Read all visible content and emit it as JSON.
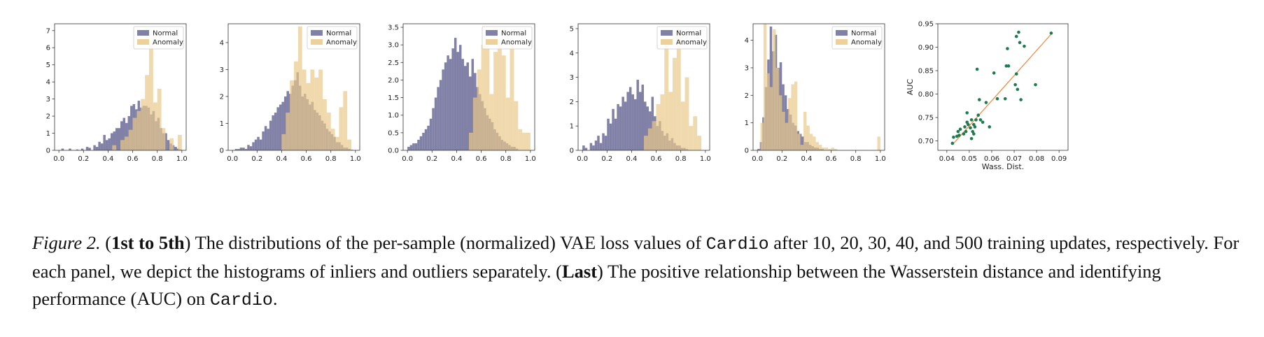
{
  "legend": {
    "normal": "Normal",
    "anomaly": "Anomaly"
  },
  "colors": {
    "normal": "#6b6b98",
    "anomaly": "#e9c98a",
    "overlap": "#a8906e",
    "scatter": "#1e7a4f",
    "fit": "#f08a44"
  },
  "chart_data": [
    {
      "type": "histogram",
      "panel": 1,
      "xlim": [
        0,
        1
      ],
      "ylim": [
        0,
        7.4
      ],
      "x_ticks": [
        "0.0",
        "0.2",
        "0.4",
        "0.6",
        "0.8",
        "1.0"
      ],
      "y_ticks": [
        "0",
        "1",
        "2",
        "3",
        "4",
        "5",
        "6",
        "7"
      ],
      "legend_loc": "upper-right",
      "series": [
        {
          "name": "Normal",
          "bins": 50,
          "range": [
            0,
            1
          ],
          "values": [
            0,
            0.1,
            0,
            0,
            0.1,
            0,
            0,
            0.05,
            0,
            0.1,
            0,
            0.2,
            0.15,
            0,
            0.3,
            0.2,
            0.5,
            0.4,
            0.9,
            0.6,
            0.7,
            1.0,
            1.1,
            1.3,
            1.3,
            1.7,
            1.9,
            1.6,
            2.0,
            2.6,
            2.7,
            2.4,
            2.9,
            2.5,
            2.6,
            2.6,
            2.5,
            2.1,
            2.3,
            1.7,
            1.9,
            1.3,
            1.0,
            1.0,
            0.6,
            0.4,
            0.3,
            0.2,
            0.1,
            0.05
          ]
        },
        {
          "name": "Anomaly",
          "bins": 30,
          "range": [
            0,
            1
          ],
          "values": [
            0,
            0,
            0,
            0,
            0,
            0,
            0,
            0,
            0,
            0,
            0,
            0,
            0,
            0.3,
            0,
            0.6,
            0.8,
            1.2,
            1.9,
            2.3,
            3.0,
            4.4,
            6.2,
            2.8,
            3.6,
            1.3,
            0,
            0.7,
            0,
            0.9
          ]
        }
      ]
    },
    {
      "type": "histogram",
      "panel": 2,
      "xlim": [
        0,
        1
      ],
      "ylim": [
        0,
        4.7
      ],
      "x_ticks": [
        "0.0",
        "0.2",
        "0.4",
        "0.6",
        "0.8",
        "1.0"
      ],
      "y_ticks": [
        "0",
        "1",
        "2",
        "3",
        "4"
      ],
      "legend_loc": "upper-right",
      "series": [
        {
          "name": "Normal",
          "bins": 50,
          "range": [
            0,
            1
          ],
          "values": [
            0,
            0.05,
            0.05,
            0.1,
            0.1,
            0.05,
            0.2,
            0.15,
            0.3,
            0.4,
            0.5,
            0.4,
            0.7,
            0.9,
            0.8,
            1.1,
            1.3,
            1.4,
            1.6,
            1.7,
            1.8,
            2.0,
            2.2,
            2.1,
            2.4,
            2.6,
            2.9,
            2.4,
            2.0,
            2.1,
            1.9,
            1.7,
            1.8,
            1.5,
            1.4,
            1.3,
            1.1,
            1.0,
            0.8,
            0.7,
            0.6,
            0.5,
            0.3,
            0.3,
            0.2,
            0.1,
            0.1,
            0.05,
            0.02,
            0
          ]
        },
        {
          "name": "Anomaly",
          "bins": 30,
          "range": [
            0,
            1
          ],
          "values": [
            0,
            0,
            0,
            0,
            0,
            0,
            0,
            0,
            0,
            0,
            0,
            0,
            0.6,
            1.4,
            2.6,
            3.3,
            4.6,
            3.0,
            2.5,
            3.0,
            2.7,
            3.0,
            1.9,
            1.4,
            0.8,
            0.5,
            1.6,
            2.2,
            0.4,
            0
          ]
        }
      ]
    },
    {
      "type": "histogram",
      "panel": 3,
      "xlim": [
        0,
        1
      ],
      "ylim": [
        0,
        3.6
      ],
      "x_ticks": [
        "0.0",
        "0.2",
        "0.4",
        "0.6",
        "0.8",
        "1.0"
      ],
      "y_ticks": [
        "0.0",
        "0.5",
        "1.0",
        "1.5",
        "2.0",
        "2.5",
        "3.0",
        "3.5"
      ],
      "legend_loc": "upper-right",
      "series": [
        {
          "name": "Normal",
          "bins": 50,
          "range": [
            0,
            1
          ],
          "values": [
            0.1,
            0.15,
            0.2,
            0.2,
            0.3,
            0.4,
            0.5,
            0.6,
            0.7,
            0.9,
            1.2,
            1.5,
            1.8,
            2.0,
            2.3,
            2.5,
            2.7,
            2.6,
            2.9,
            3.2,
            2.8,
            3.0,
            2.6,
            2.4,
            2.5,
            2.1,
            2.6,
            2.2,
            1.8,
            1.6,
            1.4,
            1.2,
            1.0,
            0.9,
            0.8,
            0.6,
            0.5,
            0.4,
            0.3,
            0.25,
            0.2,
            0.15,
            0.1,
            0.1,
            0.05,
            0,
            0,
            0,
            0,
            0
          ]
        },
        {
          "name": "Anomaly",
          "bins": 30,
          "range": [
            0,
            1
          ],
          "values": [
            0,
            0,
            0,
            0,
            0,
            0,
            0,
            0,
            0,
            0,
            0,
            0,
            0,
            0,
            0,
            0.5,
            1.5,
            2.3,
            3.0,
            3.0,
            1.6,
            2.8,
            3.0,
            2.7,
            1.5,
            3.0,
            1.4,
            0.6,
            0.5,
            0.5
          ]
        }
      ]
    },
    {
      "type": "histogram",
      "panel": 4,
      "xlim": [
        0,
        1
      ],
      "ylim": [
        0,
        5.2
      ],
      "x_ticks": [
        "0.0",
        "0.2",
        "0.4",
        "0.6",
        "0.8",
        "1.0"
      ],
      "y_ticks": [
        "0",
        "1",
        "2",
        "3",
        "4",
        "5"
      ],
      "legend_loc": "upper-right",
      "series": [
        {
          "name": "Normal",
          "bins": 50,
          "range": [
            0,
            1
          ],
          "values": [
            0.2,
            0.1,
            0,
            0.3,
            0.2,
            0.4,
            0.6,
            0.3,
            0.7,
            0.6,
            1.3,
            1.1,
            1.7,
            1.3,
            1.9,
            1.8,
            2.2,
            2.0,
            2.4,
            2.6,
            2.3,
            2.1,
            2.9,
            2.4,
            2.7,
            2.0,
            1.8,
            1.6,
            2.2,
            1.4,
            1.0,
            1.2,
            0.8,
            0.6,
            0.7,
            0.4,
            0.5,
            0.3,
            0.2,
            0.2,
            0.1,
            0.1,
            0.05,
            0,
            0,
            0,
            0,
            0,
            0,
            0
          ]
        },
        {
          "name": "Anomaly",
          "bins": 30,
          "range": [
            0,
            1
          ],
          "values": [
            0,
            0,
            0,
            0,
            0,
            0,
            0,
            0,
            0,
            0,
            0,
            0,
            0,
            0,
            0,
            0.6,
            0.9,
            1.2,
            1.9,
            2.3,
            4.5,
            2.4,
            3.8,
            5.0,
            2.0,
            3.0,
            1.0,
            1.4,
            0.6,
            0
          ]
        }
      ]
    },
    {
      "type": "histogram",
      "panel": 5,
      "xlim": [
        0,
        1
      ],
      "ylim": [
        0,
        4.6
      ],
      "x_ticks": [
        "0.0",
        "0.2",
        "0.4",
        "0.6",
        "0.8",
        "1.0"
      ],
      "y_ticks": [
        "0",
        "1",
        "2",
        "3",
        "4"
      ],
      "legend_loc": "upper-right",
      "series": [
        {
          "name": "Normal",
          "bins": 50,
          "range": [
            0,
            1
          ],
          "values": [
            0.05,
            0.3,
            1.2,
            2.3,
            3.3,
            4.5,
            3.6,
            4.2,
            3.0,
            3.2,
            2.4,
            2.0,
            1.5,
            1.3,
            1.0,
            0.9,
            0.7,
            0.6,
            0.5,
            0.3,
            0.3,
            0.2,
            0.15,
            0.1,
            0.1,
            0.05,
            0.05,
            0,
            0,
            0,
            0,
            0,
            0,
            0,
            0,
            0,
            0,
            0,
            0,
            0,
            0,
            0,
            0,
            0,
            0,
            0,
            0,
            0,
            0,
            0
          ]
        },
        {
          "name": "Anomaly",
          "bins": 40,
          "range": [
            0,
            1
          ],
          "values": [
            0,
            1.0,
            4.6,
            2.8,
            2.3,
            4.4,
            3.0,
            2.0,
            1.4,
            1.0,
            1.9,
            2.4,
            2.5,
            0.6,
            0.2,
            1.4,
            0.9,
            0.6,
            0.5,
            0.3,
            0.2,
            0.1,
            0.1,
            0.05,
            0.1,
            0.05,
            0,
            0,
            0,
            0,
            0,
            0,
            0,
            0,
            0,
            0,
            0,
            0,
            0,
            0.5
          ]
        }
      ]
    },
    {
      "type": "scatter",
      "panel": 6,
      "xlabel": "Wass. Dist.",
      "ylabel": "AUC",
      "xlim": [
        0.036,
        0.094
      ],
      "ylim": [
        0.68,
        0.95
      ],
      "x_ticks": [
        "0.04",
        "0.05",
        "0.06",
        "0.07",
        "0.08",
        "0.09"
      ],
      "y_ticks": [
        "0.70",
        "0.75",
        "0.80",
        "0.85",
        "0.90",
        "0.95"
      ],
      "points": [
        [
          0.0425,
          0.695
        ],
        [
          0.043,
          0.708
        ],
        [
          0.0445,
          0.71
        ],
        [
          0.045,
          0.72
        ],
        [
          0.0455,
          0.712
        ],
        [
          0.046,
          0.725
        ],
        [
          0.0475,
          0.715
        ],
        [
          0.048,
          0.73
        ],
        [
          0.0485,
          0.72
        ],
        [
          0.049,
          0.74
        ],
        [
          0.049,
          0.76
        ],
        [
          0.0495,
          0.735
        ],
        [
          0.0505,
          0.728
        ],
        [
          0.051,
          0.705
        ],
        [
          0.051,
          0.745
        ],
        [
          0.0515,
          0.72
        ],
        [
          0.052,
          0.735
        ],
        [
          0.052,
          0.715
        ],
        [
          0.0525,
          0.73
        ],
        [
          0.053,
          0.745
        ],
        [
          0.0535,
          0.853
        ],
        [
          0.054,
          0.755
        ],
        [
          0.0545,
          0.788
        ],
        [
          0.055,
          0.745
        ],
        [
          0.056,
          0.74
        ],
        [
          0.0575,
          0.782
        ],
        [
          0.059,
          0.73
        ],
        [
          0.061,
          0.845
        ],
        [
          0.0625,
          0.79
        ],
        [
          0.066,
          0.79
        ],
        [
          0.0665,
          0.86
        ],
        [
          0.067,
          0.897
        ],
        [
          0.0675,
          0.86
        ],
        [
          0.0705,
          0.82
        ],
        [
          0.071,
          0.843
        ],
        [
          0.0715,
          0.81
        ],
        [
          0.071,
          0.923
        ],
        [
          0.072,
          0.932
        ],
        [
          0.0725,
          0.91
        ],
        [
          0.073,
          0.788
        ],
        [
          0.0745,
          0.902
        ],
        [
          0.0795,
          0.82
        ],
        [
          0.0865,
          0.93
        ]
      ],
      "fit_line": [
        [
          0.0425,
          0.692
        ],
        [
          0.0865,
          0.928
        ]
      ]
    }
  ],
  "caption": {
    "label": "Figure 2.",
    "parts": [
      {
        "t": " (",
        "s": ""
      },
      {
        "t": "1st to 5th",
        "s": "b"
      },
      {
        "t": ") The distributions of the per-sample (normalized) VAE loss values of ",
        "s": ""
      },
      {
        "t": "Cardio",
        "s": "mono"
      },
      {
        "t": " after 10, 20, 30, 40, and 500 training updates, respectively. For each panel, we depict the histograms of inliers and outliers separately. (",
        "s": ""
      },
      {
        "t": "Last",
        "s": "b"
      },
      {
        "t": ") The positive relationship between the Wasserstein distance and identifying performance (AUC) on ",
        "s": ""
      },
      {
        "t": "Cardio",
        "s": "mono"
      },
      {
        "t": ".",
        "s": ""
      }
    ]
  }
}
